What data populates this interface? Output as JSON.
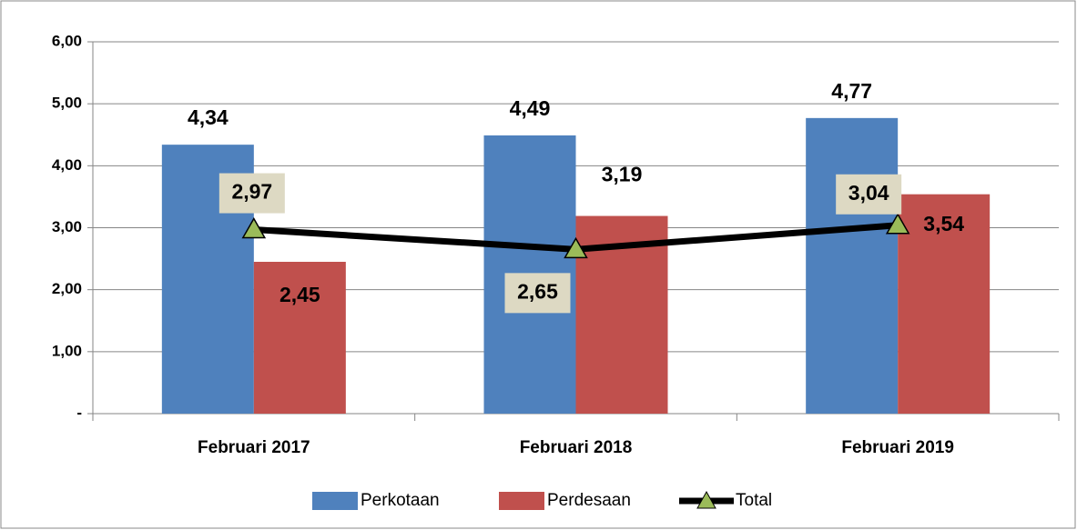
{
  "chart_data": {
    "type": "bar",
    "categories": [
      "Februari 2017",
      "Februari 2018",
      "Februari 2019"
    ],
    "series": [
      {
        "name": "Perkotaan",
        "color": "#4f81bd",
        "values": [
          4.34,
          4.49,
          4.77
        ],
        "value_labels": [
          "4,34",
          "4,49",
          "4,77"
        ]
      },
      {
        "name": "Perdesaan",
        "color": "#c0504d",
        "values": [
          2.45,
          3.19,
          3.54
        ],
        "value_labels": [
          "2,45",
          "3,19",
          "3,54"
        ]
      },
      {
        "name": "Total",
        "type": "line",
        "color": "#000000",
        "marker_color": "#9bbb59",
        "values": [
          2.97,
          2.65,
          3.04
        ],
        "value_labels": [
          "2,97",
          "2,65",
          "3,04"
        ]
      }
    ],
    "ylim": [
      0,
      6
    ],
    "yticks": [
      {
        "value": 0,
        "label": "-"
      },
      {
        "value": 1,
        "label": "1,00"
      },
      {
        "value": 2,
        "label": "2,00"
      },
      {
        "value": 3,
        "label": "3,00"
      },
      {
        "value": 4,
        "label": "4,00"
      },
      {
        "value": 5,
        "label": "5,00"
      },
      {
        "value": 6,
        "label": "6,00"
      }
    ],
    "grid": true,
    "legend": "bottom"
  }
}
